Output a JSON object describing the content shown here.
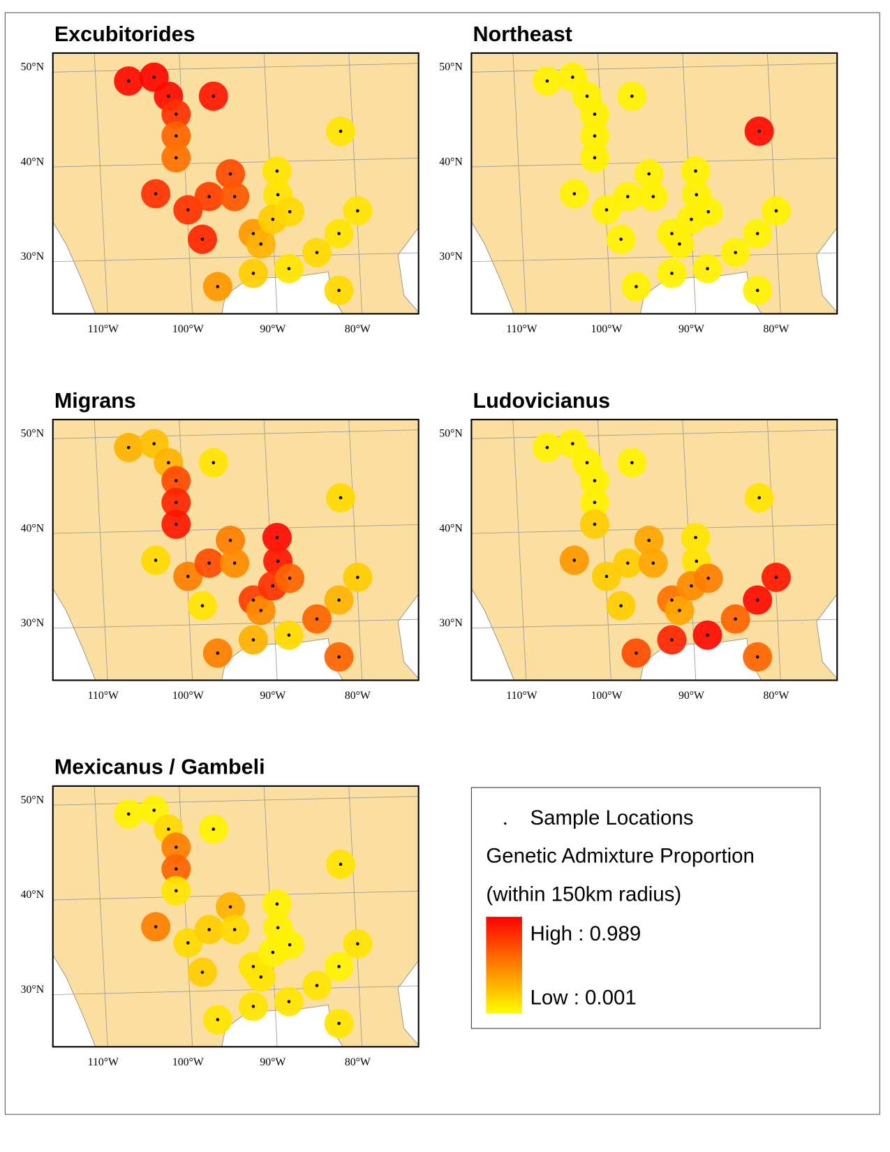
{
  "sites": [
    {
      "lon": -107,
      "lat": 48.6
    },
    {
      "lon": -104,
      "lat": 49
    },
    {
      "lon": -102.3,
      "lat": 47
    },
    {
      "lon": -97,
      "lat": 47
    },
    {
      "lon": -101.4,
      "lat": 45.1
    },
    {
      "lon": -101.4,
      "lat": 42.8
    },
    {
      "lon": -101.4,
      "lat": 40.5
    },
    {
      "lon": -103.8,
      "lat": 36.7
    },
    {
      "lon": -100,
      "lat": 35
    },
    {
      "lon": -97.5,
      "lat": 36.4
    },
    {
      "lon": -98.3,
      "lat": 31.9
    },
    {
      "lon": -95,
      "lat": 38.8
    },
    {
      "lon": -94.5,
      "lat": 36.4
    },
    {
      "lon": -96.5,
      "lat": 26.9
    },
    {
      "lon": -92.3,
      "lat": 32.5
    },
    {
      "lon": -91.4,
      "lat": 31.4
    },
    {
      "lon": -92.3,
      "lat": 28.3
    },
    {
      "lon": -89.5,
      "lat": 39.1
    },
    {
      "lon": -89.4,
      "lat": 36.6
    },
    {
      "lon": -90,
      "lat": 34
    },
    {
      "lon": -88,
      "lat": 34.8
    },
    {
      "lon": -88.1,
      "lat": 28.8
    },
    {
      "lon": -84.8,
      "lat": 30.5
    },
    {
      "lon": -82.2,
      "lat": 26.5
    },
    {
      "lon": -82.2,
      "lat": 32.5
    },
    {
      "lon": -80,
      "lat": 34.9
    },
    {
      "lon": -82,
      "lat": 43.3
    }
  ],
  "panels": [
    {
      "title": "Excubitorides",
      "values": [
        0.95,
        0.97,
        0.95,
        0.9,
        0.8,
        0.6,
        0.55,
        0.8,
        0.8,
        0.75,
        0.85,
        0.7,
        0.65,
        0.4,
        0.4,
        0.3,
        0.2,
        0.1,
        0.1,
        0.2,
        0.15,
        0.1,
        0.15,
        0.15,
        0.1,
        0.1,
        0.1
      ]
    },
    {
      "title": "Northeast",
      "values": [
        0.05,
        0.05,
        0.05,
        0.05,
        0.05,
        0.05,
        0.05,
        0.05,
        0.05,
        0.05,
        0.05,
        0.05,
        0.05,
        0.05,
        0.05,
        0.05,
        0.05,
        0.05,
        0.05,
        0.05,
        0.05,
        0.05,
        0.05,
        0.05,
        0.05,
        0.05,
        0.95
      ]
    },
    {
      "title": "Migrans",
      "values": [
        0.3,
        0.25,
        0.3,
        0.1,
        0.7,
        0.85,
        0.9,
        0.15,
        0.5,
        0.7,
        0.1,
        0.5,
        0.45,
        0.5,
        0.75,
        0.45,
        0.3,
        0.95,
        0.9,
        0.8,
        0.6,
        0.15,
        0.6,
        0.6,
        0.3,
        0.2,
        0.15
      ]
    },
    {
      "title": "Ludovicianus",
      "values": [
        0.05,
        0.05,
        0.05,
        0.05,
        0.05,
        0.05,
        0.2,
        0.4,
        0.2,
        0.2,
        0.2,
        0.35,
        0.35,
        0.7,
        0.55,
        0.35,
        0.85,
        0.1,
        0.1,
        0.45,
        0.5,
        0.95,
        0.6,
        0.6,
        0.95,
        0.9,
        0.1
      ]
    },
    {
      "title": "Mexicanus / Gambeli",
      "values": [
        0.05,
        0.05,
        0.15,
        0.05,
        0.5,
        0.6,
        0.1,
        0.5,
        0.15,
        0.2,
        0.2,
        0.3,
        0.15,
        0.1,
        0.1,
        0.1,
        0.1,
        0.05,
        0.05,
        0.05,
        0.05,
        0.1,
        0.1,
        0.1,
        0.05,
        0.1,
        0.1
      ]
    }
  ],
  "latticks": [
    {
      "value": 50,
      "label": "50°N"
    },
    {
      "value": 40,
      "label": "40°N"
    },
    {
      "value": 30,
      "label": "30°N"
    }
  ],
  "lonticks": [
    {
      "value": -110,
      "label": "110°W"
    },
    {
      "value": -100,
      "label": "100°W"
    },
    {
      "value": -90,
      "label": "90°W"
    },
    {
      "value": -80,
      "label": "80°W"
    }
  ],
  "legend": {
    "sample": "Sample Locations",
    "title": "Genetic Admixture Proportion",
    "subtitle": "(within 150km radius)",
    "high": {
      "value": 0.989,
      "label": "High : 0.989"
    },
    "low": {
      "value": 0.001,
      "label": "Low : 0.001"
    }
  }
}
